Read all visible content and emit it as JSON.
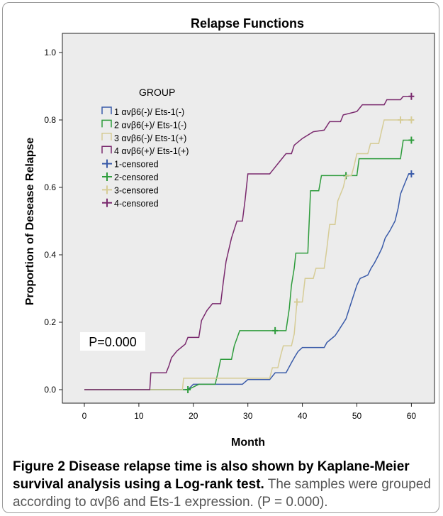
{
  "caption": {
    "label": "Figure 2",
    "bold_text": "Disease relapse time is also shown by Kaplane-Meier survival analysis using a Log-rank test.",
    "body_text": "The samples were grouped according to αvβ6 and Ets-1 expression. (P = 0.000)."
  },
  "chart_data": {
    "type": "line",
    "step": true,
    "title": "Relapse Functions",
    "xlabel": "Month",
    "ylabel": "Proportion of Desease Relapse",
    "xlim": [
      0,
      63
    ],
    "ylim": [
      0.0,
      1.0
    ],
    "x_ticks": [
      0,
      10,
      20,
      30,
      40,
      50,
      60
    ],
    "y_ticks": [
      0.0,
      0.2,
      0.4,
      0.6,
      0.8,
      1.0
    ],
    "legend_title": "GROUP",
    "legend_position": "left",
    "annotation": "P=0.000",
    "plot_background": "#ececec",
    "series": [
      {
        "name": "1 αvβ6(-)/ Ets-1(-)",
        "color": "#3a5ba9",
        "points": [
          [
            0,
            0
          ],
          [
            19,
            0.0
          ],
          [
            20,
            0.016
          ],
          [
            29,
            0.016
          ],
          [
            30,
            0.03
          ],
          [
            34,
            0.03
          ],
          [
            35,
            0.05
          ],
          [
            37,
            0.05
          ],
          [
            38,
            0.08
          ],
          [
            38.6,
            0.097
          ],
          [
            39.2,
            0.113
          ],
          [
            40,
            0.125
          ],
          [
            44,
            0.125
          ],
          [
            44.5,
            0.14
          ],
          [
            46,
            0.16
          ],
          [
            46.6,
            0.175
          ],
          [
            47.2,
            0.19
          ],
          [
            48,
            0.21
          ],
          [
            48.6,
            0.24
          ],
          [
            49,
            0.26
          ],
          [
            49.6,
            0.29
          ],
          [
            50,
            0.31
          ],
          [
            50.6,
            0.33
          ],
          [
            52,
            0.34
          ],
          [
            52.6,
            0.36
          ],
          [
            53.2,
            0.375
          ],
          [
            54,
            0.4
          ],
          [
            54.6,
            0.42
          ],
          [
            55.2,
            0.45
          ],
          [
            56,
            0.47
          ],
          [
            57,
            0.5
          ],
          [
            57.6,
            0.54
          ],
          [
            58,
            0.58
          ],
          [
            59,
            0.62
          ],
          [
            59.5,
            0.64
          ],
          [
            60,
            0.64
          ]
        ],
        "censored": [
          [
            60,
            0.64
          ]
        ]
      },
      {
        "name": "2 αvβ6(+)/ Ets-1(-)",
        "color": "#2e9c3c",
        "points": [
          [
            0,
            0
          ],
          [
            19,
            0.0
          ],
          [
            21,
            0.016
          ],
          [
            24,
            0.016
          ],
          [
            24.5,
            0.05
          ],
          [
            25,
            0.09
          ],
          [
            27,
            0.09
          ],
          [
            27.5,
            0.13
          ],
          [
            28.5,
            0.175
          ],
          [
            37,
            0.175
          ],
          [
            37.6,
            0.24
          ],
          [
            38,
            0.31
          ],
          [
            38.5,
            0.36
          ],
          [
            38.8,
            0.405
          ],
          [
            41,
            0.405
          ],
          [
            41.5,
            0.59
          ],
          [
            43,
            0.59
          ],
          [
            43.5,
            0.635
          ],
          [
            50,
            0.635
          ],
          [
            50.4,
            0.685
          ],
          [
            58,
            0.685
          ],
          [
            58.5,
            0.74
          ],
          [
            60,
            0.74
          ]
        ],
        "censored": [
          [
            19,
            0.0
          ],
          [
            35,
            0.175
          ],
          [
            48,
            0.635
          ],
          [
            60,
            0.74
          ]
        ]
      },
      {
        "name": "3 αvβ6(-)/ Ets-1(+)",
        "color": "#d6cc96",
        "points": [
          [
            0,
            0
          ],
          [
            18,
            0.0
          ],
          [
            18.2,
            0.034
          ],
          [
            34,
            0.034
          ],
          [
            34.5,
            0.065
          ],
          [
            35.5,
            0.065
          ],
          [
            36,
            0.1
          ],
          [
            36.5,
            0.13
          ],
          [
            38,
            0.13
          ],
          [
            38.5,
            0.165
          ],
          [
            39,
            0.26
          ],
          [
            40,
            0.26
          ],
          [
            40.5,
            0.33
          ],
          [
            42,
            0.33
          ],
          [
            42.5,
            0.36
          ],
          [
            44,
            0.36
          ],
          [
            44.5,
            0.42
          ],
          [
            45,
            0.49
          ],
          [
            46,
            0.49
          ],
          [
            46.5,
            0.56
          ],
          [
            47.5,
            0.6
          ],
          [
            48,
            0.635
          ],
          [
            49,
            0.635
          ],
          [
            49.5,
            0.665
          ],
          [
            50,
            0.7
          ],
          [
            52,
            0.7
          ],
          [
            52.5,
            0.73
          ],
          [
            54,
            0.73
          ],
          [
            54.5,
            0.765
          ],
          [
            55,
            0.8
          ],
          [
            60,
            0.8
          ]
        ],
        "censored": [
          [
            39,
            0.26
          ],
          [
            58,
            0.8
          ],
          [
            60,
            0.8
          ]
        ]
      },
      {
        "name": "4 αvβ6(+)/ Ets-1(+)",
        "color": "#7a2a6e",
        "points": [
          [
            0,
            0
          ],
          [
            12,
            0.0
          ],
          [
            12.2,
            0.05
          ],
          [
            15,
            0.05
          ],
          [
            15.5,
            0.07
          ],
          [
            16,
            0.095
          ],
          [
            17,
            0.115
          ],
          [
            18.5,
            0.135
          ],
          [
            19,
            0.155
          ],
          [
            21,
            0.155
          ],
          [
            21.5,
            0.205
          ],
          [
            22.5,
            0.235
          ],
          [
            23.5,
            0.255
          ],
          [
            25,
            0.255
          ],
          [
            25.5,
            0.32
          ],
          [
            26,
            0.38
          ],
          [
            27,
            0.45
          ],
          [
            28,
            0.5
          ],
          [
            29,
            0.5
          ],
          [
            29.5,
            0.565
          ],
          [
            30,
            0.64
          ],
          [
            34,
            0.64
          ],
          [
            34.5,
            0.65
          ],
          [
            36,
            0.68
          ],
          [
            37,
            0.7
          ],
          [
            38,
            0.7
          ],
          [
            38.5,
            0.725
          ],
          [
            40,
            0.745
          ],
          [
            42,
            0.765
          ],
          [
            44,
            0.77
          ],
          [
            45,
            0.795
          ],
          [
            47,
            0.795
          ],
          [
            47.5,
            0.815
          ],
          [
            50,
            0.825
          ],
          [
            51,
            0.845
          ],
          [
            55,
            0.845
          ],
          [
            55.5,
            0.86
          ],
          [
            58,
            0.86
          ],
          [
            58.5,
            0.87
          ],
          [
            60,
            0.87
          ]
        ],
        "censored": [
          [
            60,
            0.87
          ]
        ]
      }
    ],
    "censored_legend": [
      {
        "name": "1-censored",
        "color": "#3a5ba9"
      },
      {
        "name": "2-censored",
        "color": "#2e9c3c"
      },
      {
        "name": "3-censored",
        "color": "#d6cc96"
      },
      {
        "name": "4-censored",
        "color": "#7a2a6e"
      }
    ]
  }
}
